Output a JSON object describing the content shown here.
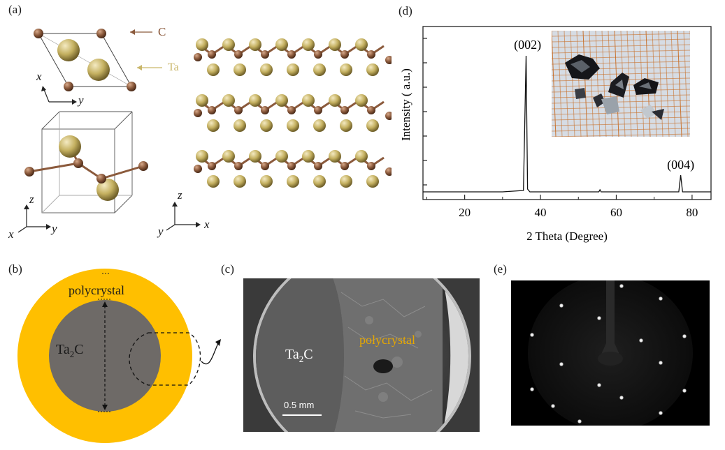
{
  "panels": {
    "a": "(a)",
    "b": "(b)",
    "c": "(c)",
    "d": "(d)",
    "e": "(e)"
  },
  "panel_a": {
    "legend": [
      {
        "label": "C",
        "color": "#8b5a3c"
      },
      {
        "label": "Ta",
        "color": "#c9b66a"
      }
    ],
    "axes_top": {
      "a": "x",
      "b": "y"
    },
    "axes_cell": {
      "a": "z",
      "b": "x",
      "c": "y"
    },
    "axes_layers": {
      "a": "z",
      "b": "y",
      "c": "x"
    }
  },
  "panel_b": {
    "outer_label": "polycrystal",
    "inner_label_main": "Ta",
    "inner_label_sub": "2",
    "inner_label_tail": "C",
    "outer_color": "#ffbf00",
    "inner_color": "#6e6a67"
  },
  "panel_c": {
    "label_left_main": "Ta",
    "label_left_sub": "2",
    "label_left_tail": "C",
    "label_right": "polycrystal",
    "scale_bar": "0.5 mm",
    "label_right_color": "#e8a800"
  },
  "chart_data": {
    "type": "line",
    "xlabel": "2 Theta (Degree)",
    "ylabel": "Intensity ( a.u.)",
    "xlim": [
      9,
      85
    ],
    "xticks": [
      20,
      40,
      60,
      80
    ],
    "series": [
      {
        "x": [
          9,
          20,
          30,
          35.5,
          36.2,
          36.6,
          37.2,
          40,
          50,
          55.4,
          55.7,
          56.0,
          60,
          70,
          76.5,
          77.0,
          77.5,
          80,
          85
        ],
        "y": [
          0.02,
          0.02,
          0.02,
          0.03,
          1.0,
          0.04,
          0.02,
          0.02,
          0.02,
          0.02,
          0.035,
          0.02,
          0.02,
          0.02,
          0.02,
          0.14,
          0.02,
          0.02,
          0.02
        ]
      }
    ],
    "annotations": [
      {
        "text": "(002)",
        "x": 36.6
      },
      {
        "text": "(004)",
        "x": 77.0
      }
    ]
  }
}
